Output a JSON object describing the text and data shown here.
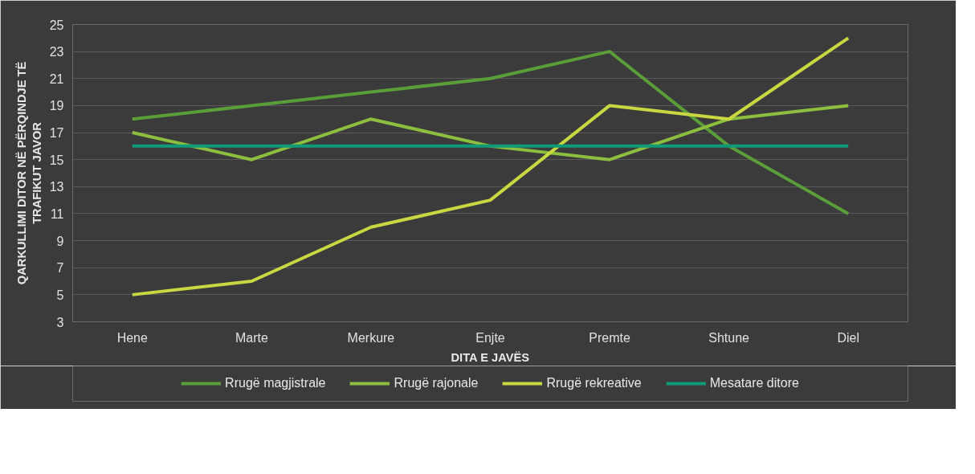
{
  "chart_data": {
    "type": "line",
    "xlabel": "DITA E JAVËS",
    "ylabel": "QARKULLIMI DITOR NË PËRQINDJE TË TRAFIKUT JAVOR",
    "categories": [
      "Hene",
      "Marte",
      "Merkure",
      "Enjte",
      "Premte",
      "Shtune",
      "Diel"
    ],
    "series": [
      {
        "name": "Rrugë magjistrale",
        "color": "#5a9e3a",
        "values": [
          18,
          19,
          20,
          21,
          23,
          16,
          11
        ]
      },
      {
        "name": "Rrugë rajonale",
        "color": "#8dbf3f",
        "values": [
          17,
          15,
          18,
          16,
          15,
          18,
          19
        ]
      },
      {
        "name": "Rrugë rekreative",
        "color": "#c9d841",
        "values": [
          5,
          6,
          10,
          12,
          19,
          18,
          24
        ]
      },
      {
        "name": "Mesatare ditore",
        "color": "#0f9a7a",
        "values": [
          16,
          16,
          16,
          16,
          16,
          16,
          16
        ]
      }
    ],
    "ylim": [
      3,
      25
    ],
    "yticks": [
      3,
      5,
      7,
      9,
      11,
      13,
      15,
      17,
      19,
      21,
      23,
      25
    ],
    "grid": "y",
    "legend": "bottom",
    "marker": "none",
    "line_style": "solid"
  }
}
